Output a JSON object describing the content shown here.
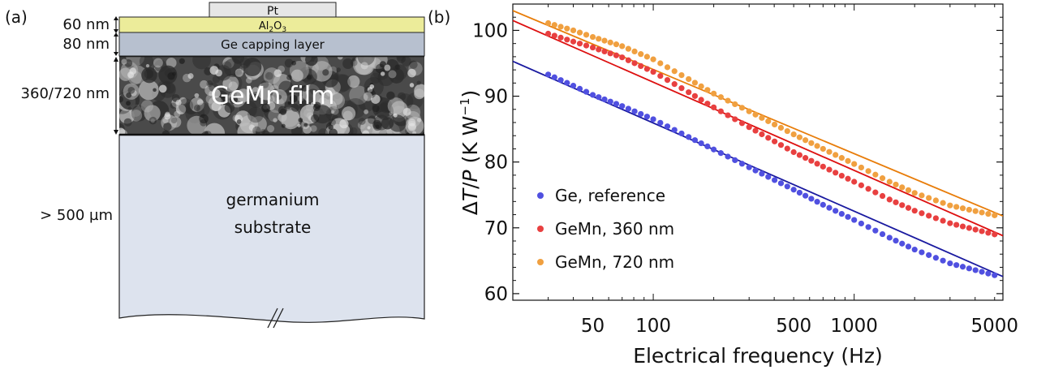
{
  "panel_a": {
    "label": "(a)",
    "layers": {
      "pt": "Pt",
      "al2o3_main": "Al",
      "al2o3_sub1": "2",
      "al2o3_o": "O",
      "al2o3_sub2": "3",
      "capping": "Ge capping layer",
      "film": "GeMn film",
      "substrate_line1": "germanium",
      "substrate_line2": "substrate"
    },
    "thickness_labels": {
      "al2o3": "60 nm",
      "capping": "80 nm",
      "film": "360/720 nm",
      "substrate": "> 500 µm"
    },
    "colors": {
      "pt": "#e6e6e6",
      "al2o3": "#ecec9a",
      "capping": "#b7c0cf",
      "substrate": "#dde3ee"
    }
  },
  "panel_b": {
    "label": "(b)"
  },
  "chart_data": {
    "type": "scatter",
    "xlabel": "Electrical frequency (Hz)",
    "ylabel_delta": "Δ",
    "ylabel_T": "T",
    "ylabel_slash": "/",
    "ylabel_P": "P",
    "ylabel_unit": " (K W",
    "ylabel_exp": "−1",
    "ylabel_close": ")",
    "x_scale": "log",
    "xlim": [
      20,
      5500
    ],
    "ylim": [
      59,
      104
    ],
    "xticks": [
      50,
      100,
      500,
      1000,
      5000
    ],
    "xtick_labels": [
      "50",
      "100",
      "500",
      "1000",
      "5000"
    ],
    "yticks": [
      60,
      70,
      80,
      90,
      100
    ],
    "ytick_labels": [
      "60",
      "70",
      "80",
      "90",
      "100"
    ],
    "grid": false,
    "legend_position": "lower-left",
    "series": [
      {
        "name": "Ge, reference",
        "point_color": "#5050e0",
        "fit_color": "#1a1aa0",
        "x": [
          30,
          40,
          50,
          70,
          100,
          150,
          200,
          300,
          500,
          700,
          1000,
          1500,
          2000,
          3000,
          5000
        ],
        "y": [
          93.3,
          91.6,
          90.2,
          88.5,
          86.5,
          83.8,
          81.9,
          79.2,
          75.8,
          73.5,
          71.2,
          68.5,
          66.7,
          64.6,
          62.8
        ],
        "fit_x": [
          20,
          5500
        ],
        "fit_y": [
          95.3,
          62.6
        ]
      },
      {
        "name": "GeMn, 360 nm",
        "point_color": "#e84040",
        "fit_color": "#dd1010",
        "x": [
          30,
          40,
          50,
          70,
          100,
          150,
          200,
          300,
          500,
          700,
          1000,
          1500,
          2000,
          3000,
          5000
        ],
        "y": [
          99.5,
          98.3,
          97.4,
          95.9,
          93.7,
          90.6,
          88.3,
          85.3,
          81.5,
          79.3,
          77.0,
          74.3,
          72.6,
          70.7,
          69.0
        ],
        "fit_x": [
          20,
          5500
        ],
        "fit_y": [
          101.5,
          68.8
        ]
      },
      {
        "name": "GeMn, 720 nm",
        "point_color": "#f0a040",
        "fit_color": "#e87d0a",
        "x": [
          30,
          40,
          50,
          70,
          100,
          150,
          200,
          300,
          500,
          700,
          1000,
          1500,
          2000,
          3000,
          5000
        ],
        "y": [
          101.1,
          100.0,
          99.0,
          97.6,
          95.6,
          92.6,
          90.4,
          87.7,
          84.2,
          82.0,
          79.7,
          77.0,
          75.3,
          73.4,
          71.9
        ],
        "fit_x": [
          20,
          5500
        ],
        "fit_y": [
          103.0,
          71.8
        ]
      }
    ]
  }
}
